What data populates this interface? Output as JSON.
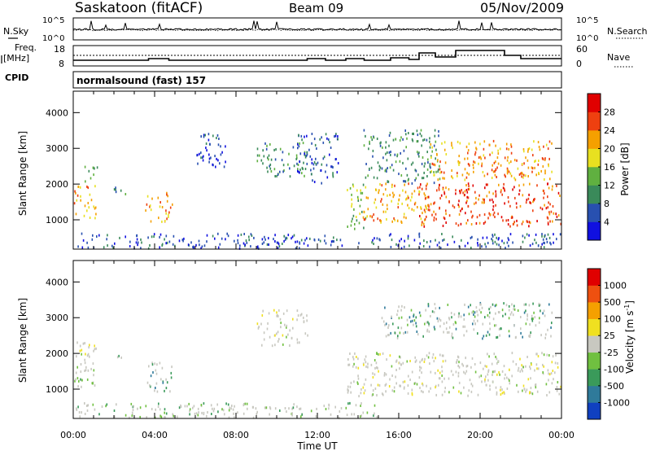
{
  "header": {
    "station": "Saskatoon (fitACF)",
    "beam": "Beam 09",
    "date": "05/Nov/2009"
  },
  "noise_panel": {
    "left_label": "N.Sky",
    "right_label": "N.Search",
    "ticks": [
      "10^5",
      "10^0"
    ]
  },
  "freq_panel": {
    "left_label_1": "Freq.",
    "left_label_2": "[MHz]",
    "left_ticks": [
      18,
      8
    ],
    "right_label": "Nave",
    "right_ticks": [
      60,
      0
    ]
  },
  "cpid": {
    "label": "CPID",
    "value": "normalsound (fast) 157"
  },
  "chart_data": [
    {
      "type": "heatmap",
      "name": "power",
      "ylabel": "Slant Range [km]",
      "xlabel": "Time UT",
      "x_ticks": [
        "00:00",
        "04:00",
        "08:00",
        "12:00",
        "16:00",
        "20:00",
        "00:00"
      ],
      "x_range_hours": [
        0,
        24
      ],
      "y_ticks": [
        1000,
        2000,
        3000,
        4000
      ],
      "ylim": [
        180,
        4600
      ],
      "colorbar": {
        "label": "Power [dB]",
        "ticks": [
          "4",
          "8",
          "12",
          "16",
          "20",
          "24",
          "28"
        ],
        "colors": [
          "#1010e0",
          "#2850b0",
          "#3a8a5a",
          "#60b040",
          "#e8e020",
          "#f5a000",
          "#ee4010",
          "#e00000"
        ]
      },
      "regions": [
        {
          "t0": 0.0,
          "t1": 1.1,
          "r0": 1000,
          "r1": 2000,
          "level": 5
        },
        {
          "t0": 0.5,
          "t1": 1.2,
          "r0": 2000,
          "r1": 2500,
          "level": 3
        },
        {
          "t0": 1.8,
          "t1": 2.6,
          "r0": 1700,
          "r1": 1950,
          "level": 2
        },
        {
          "t0": 3.5,
          "t1": 4.9,
          "r0": 900,
          "r1": 1750,
          "level": 5
        },
        {
          "t0": 6.0,
          "t1": 7.5,
          "r0": 2400,
          "r1": 3400,
          "level": 1
        },
        {
          "t0": 9.0,
          "t1": 11.5,
          "r0": 2200,
          "r1": 3200,
          "level": 2
        },
        {
          "t0": 11.0,
          "t1": 13.0,
          "r0": 2000,
          "r1": 3400,
          "level": 1
        },
        {
          "t0": 13.4,
          "t1": 14.4,
          "r0": 700,
          "r1": 2000,
          "level": 3
        },
        {
          "t0": 14.2,
          "t1": 17.5,
          "r0": 900,
          "r1": 2000,
          "level": 5
        },
        {
          "t0": 14.2,
          "t1": 18.0,
          "r0": 2000,
          "r1": 3500,
          "level": 2
        },
        {
          "t0": 17.0,
          "t1": 24.0,
          "r0": 800,
          "r1": 2000,
          "level": 6
        },
        {
          "t0": 17.5,
          "t1": 23.5,
          "r0": 2100,
          "r1": 3200,
          "level": 5
        },
        {
          "t0": 0.0,
          "t1": 24.0,
          "r0": 180,
          "r1": 600,
          "level": 1
        }
      ]
    },
    {
      "type": "heatmap",
      "name": "velocity",
      "ylabel": "Slant Range [km]",
      "xlabel": "Time UT",
      "x_ticks": [
        "00:00",
        "04:00",
        "08:00",
        "12:00",
        "16:00",
        "20:00",
        "00:00"
      ],
      "x_range_hours": [
        0,
        24
      ],
      "y_ticks": [
        1000,
        2000,
        3000,
        4000
      ],
      "ylim": [
        180,
        4600
      ],
      "colorbar": {
        "label": "Velocity [m s^-1]",
        "ticks": [
          "1000",
          "500",
          "100",
          "25",
          "-25",
          "-100",
          "-500",
          "-1000"
        ],
        "colors": [
          "#1040c0",
          "#2f7a9a",
          "#3a9a5a",
          "#70c040",
          "#c8c8c0",
          "#f0e020",
          "#f5a000",
          "#ee5010",
          "#e00000"
        ]
      },
      "regions": [
        {
          "t0": 0.0,
          "t1": 1.1,
          "r0": 1000,
          "r1": 2300,
          "level": 4
        },
        {
          "t0": 0.0,
          "t1": 0.6,
          "r0": 1200,
          "r1": 1800,
          "level": 3
        },
        {
          "t0": 1.8,
          "t1": 2.6,
          "r0": 1700,
          "r1": 1950,
          "level": 3
        },
        {
          "t0": 3.5,
          "t1": 4.9,
          "r0": 900,
          "r1": 1750,
          "level": 2
        },
        {
          "t0": 9.0,
          "t1": 11.5,
          "r0": 2200,
          "r1": 3200,
          "level": 4
        },
        {
          "t0": 13.4,
          "t1": 14.4,
          "r0": 700,
          "r1": 2000,
          "level": 4
        },
        {
          "t0": 14.2,
          "t1": 24.0,
          "r0": 800,
          "r1": 2000,
          "level": 4
        },
        {
          "t0": 15.0,
          "t1": 23.5,
          "r0": 2400,
          "r1": 3400,
          "level": 2
        },
        {
          "t0": 0.0,
          "t1": 15.0,
          "r0": 180,
          "r1": 600,
          "level": 3
        }
      ]
    }
  ]
}
